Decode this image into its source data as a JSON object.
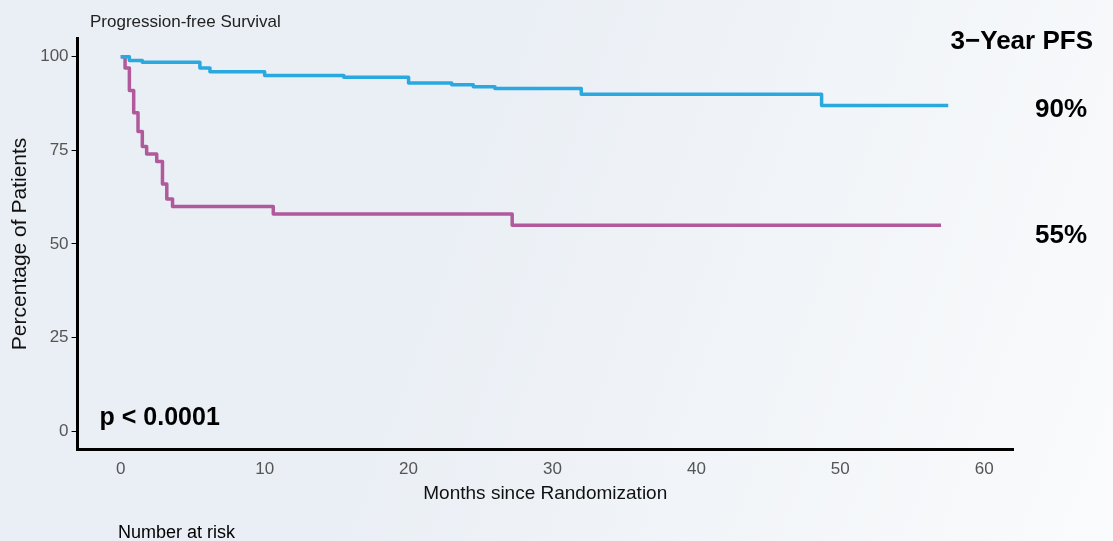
{
  "chart_data": {
    "type": "step",
    "title": "Progression-free Survival",
    "xlabel": "Months since Randomization",
    "ylabel": "Percentage of Patients",
    "xlim": [
      -3,
      62
    ],
    "xticks": [
      0,
      10,
      20,
      30,
      40,
      50,
      60
    ],
    "ylim": [
      -5,
      105
    ],
    "yticks": [
      0,
      25,
      50,
      75,
      100
    ],
    "grid": false,
    "legend": false,
    "annotations": [
      "3−Year PFS",
      "90%",
      "55%",
      "p < 0.0001",
      "Number at risk"
    ],
    "series": [
      {
        "color": "#29a9e0",
        "x": [
          0,
          0.6,
          1.5,
          5.5,
          6.2,
          10,
          15.5,
          20,
          23,
          24.5,
          26,
          32,
          48.7,
          57.5
        ],
        "values": [
          100,
          99,
          98.5,
          97,
          96,
          95,
          94.5,
          93,
          92.5,
          92,
          91.5,
          90,
          87,
          87
        ]
      },
      {
        "color": "#b05a9b",
        "x": [
          0,
          0.3,
          0.6,
          0.9,
          1.2,
          1.5,
          1.8,
          2.5,
          2.9,
          3.2,
          3.6,
          10.6,
          27.2,
          57
        ],
        "values": [
          100,
          97,
          91,
          85,
          80,
          76,
          74,
          72,
          66,
          62,
          60,
          58,
          55,
          55
        ]
      }
    ]
  }
}
